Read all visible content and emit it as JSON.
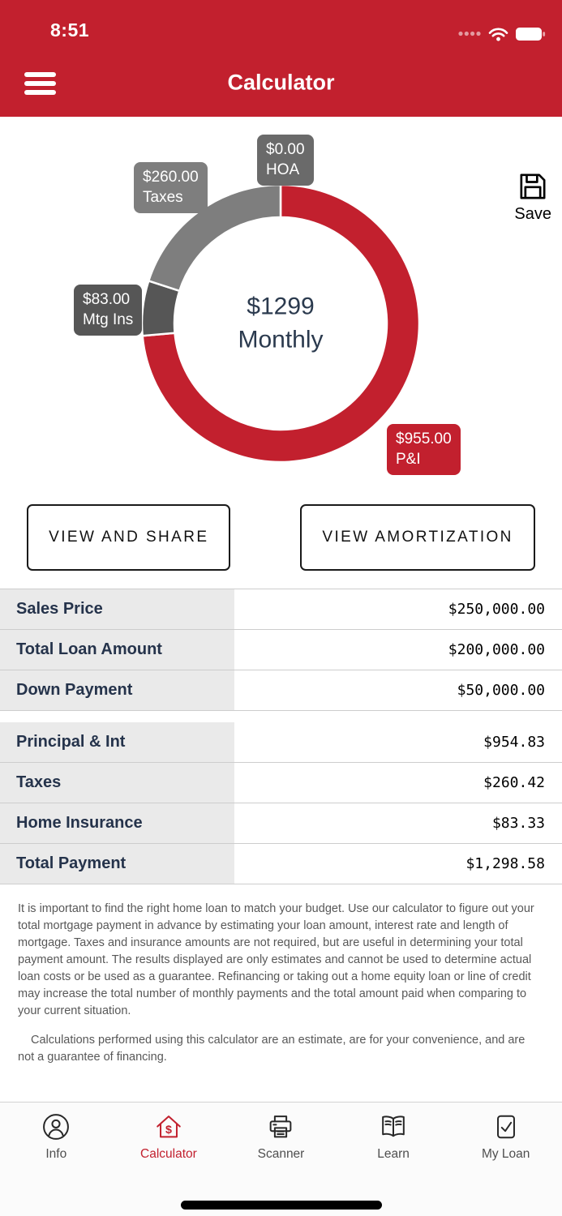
{
  "status_bar": {
    "time": "8:51"
  },
  "header": {
    "title": "Calculator",
    "background_color": "#C2202E"
  },
  "chart_data": {
    "type": "pie",
    "donut": true,
    "labels": [
      "P&I",
      "Mtg Ins",
      "Taxes",
      "HOA"
    ],
    "values": [
      955.0,
      83.0,
      260.0,
      0.0
    ],
    "callout_values": [
      "$955.00",
      "$83.00",
      "$260.00",
      "$0.00"
    ],
    "colors": [
      "#C2202E",
      "#565656",
      "#7E7E7E",
      "#6A6A6A"
    ],
    "center_title": "$1299",
    "center_subtitle": "Monthly"
  },
  "save_button": {
    "label": "Save"
  },
  "actions": {
    "view_and_share": "VIEW AND SHARE",
    "view_amortization": "VIEW AMORTIZATION"
  },
  "summary_table": {
    "loan_details": [
      {
        "label": "Sales Price",
        "value": "$250,000.00"
      },
      {
        "label": "Total Loan Amount",
        "value": "$200,000.00"
      },
      {
        "label": "Down Payment",
        "value": "$50,000.00"
      }
    ],
    "payment_details": [
      {
        "label": "Principal & Int",
        "value": "$954.83"
      },
      {
        "label": "Taxes",
        "value": "$260.42"
      },
      {
        "label": "Home Insurance",
        "value": "$83.33"
      },
      {
        "label": "Total Payment",
        "value": "$1,298.58"
      }
    ]
  },
  "disclaimer": {
    "p1": "It is important to find the right home loan to match your budget. Use our calculator to figure out your total mortgage payment in advance by estimating your loan amount, interest rate and length of mortgage. Taxes and insurance amounts are not required, but are useful in determining your total payment amount. The results displayed are only estimates and cannot be used to determine actual loan costs or be used as a guarantee. Refinancing or taking out a home equity loan or line of credit may increase the total number of monthly payments and the total amount paid when comparing to your current situation.",
    "p2": "Calculations performed using this calculator are an estimate, are for your convenience, and are not a guarantee of financing."
  },
  "tab_bar": {
    "active_color": "#C2202E",
    "items": [
      {
        "label": "Info",
        "icon": "person-circle-icon",
        "active": false
      },
      {
        "label": "Calculator",
        "icon": "house-dollar-icon",
        "active": true
      },
      {
        "label": "Scanner",
        "icon": "printer-icon",
        "active": false
      },
      {
        "label": "Learn",
        "icon": "open-book-icon",
        "active": false
      },
      {
        "label": "My Loan",
        "icon": "document-check-icon",
        "active": false
      }
    ]
  }
}
